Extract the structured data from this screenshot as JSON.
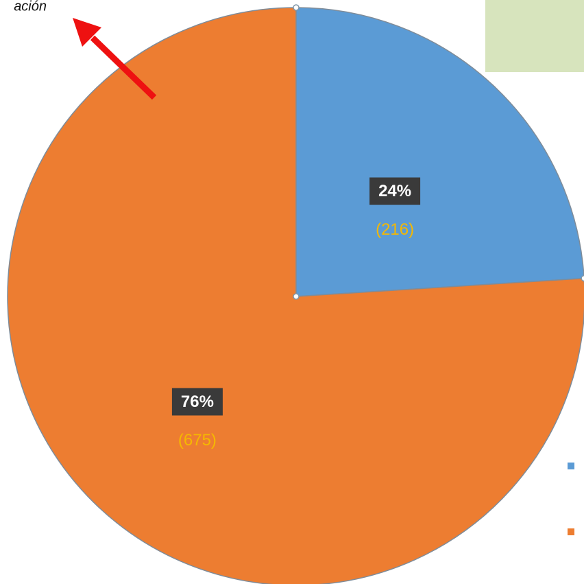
{
  "chart_data": {
    "type": "pie",
    "categories": [
      null,
      null
    ],
    "values": [
      24,
      76
    ],
    "value_labels": [
      "24%",
      "76%"
    ],
    "counts": [
      216,
      675
    ],
    "count_labels": [
      "(216)",
      "(675)"
    ],
    "colors": [
      "#5b9bd5",
      "#ed7d31"
    ],
    "annotation": "ación"
  }
}
